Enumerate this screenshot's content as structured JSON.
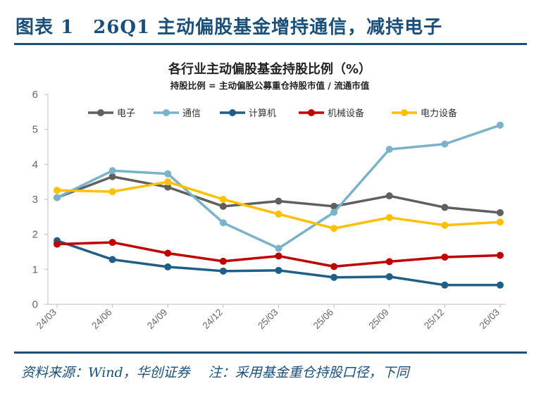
{
  "header": {
    "title": "图表 1　26Q1 主动偏股基金增持通信，减持电子"
  },
  "footer": {
    "source": "资料来源：Wind，华创证券",
    "note": "注：采用基金重仓持股口径，下同"
  },
  "chart_data": {
    "type": "line",
    "title": "各行业主动偏股基金持股比例（%）",
    "subtitle": "持股比例 = 主动偏股公募重仓持股市值 / 流通市值",
    "x": [
      "24/03",
      "24/06",
      "24/09",
      "24/12",
      "25/03",
      "25/06",
      "25/09",
      "25/12",
      "26/03"
    ],
    "ylim": [
      0,
      6
    ],
    "yticks": [
      0,
      1,
      2,
      3,
      4,
      5,
      6
    ],
    "grid": false,
    "legend_position": "top",
    "series": [
      {
        "name": "电子",
        "color": "#5f5f5f",
        "values": [
          3.05,
          3.65,
          3.35,
          2.8,
          2.95,
          2.8,
          3.1,
          2.77,
          2.62
        ]
      },
      {
        "name": "通信",
        "color": "#7ab3c9",
        "values": [
          3.05,
          3.82,
          3.73,
          2.33,
          1.6,
          2.63,
          4.43,
          4.58,
          5.12
        ]
      },
      {
        "name": "计算机",
        "color": "#1f5e86",
        "values": [
          1.82,
          1.28,
          1.07,
          0.95,
          0.97,
          0.77,
          0.79,
          0.55,
          0.55
        ]
      },
      {
        "name": "机械设备",
        "color": "#c00000",
        "values": [
          1.72,
          1.77,
          1.46,
          1.23,
          1.38,
          1.08,
          1.22,
          1.35,
          1.4
        ]
      },
      {
        "name": "电力设备",
        "color": "#ffc000",
        "values": [
          3.26,
          3.22,
          3.5,
          3.0,
          2.58,
          2.17,
          2.48,
          2.26,
          2.35
        ]
      }
    ]
  }
}
